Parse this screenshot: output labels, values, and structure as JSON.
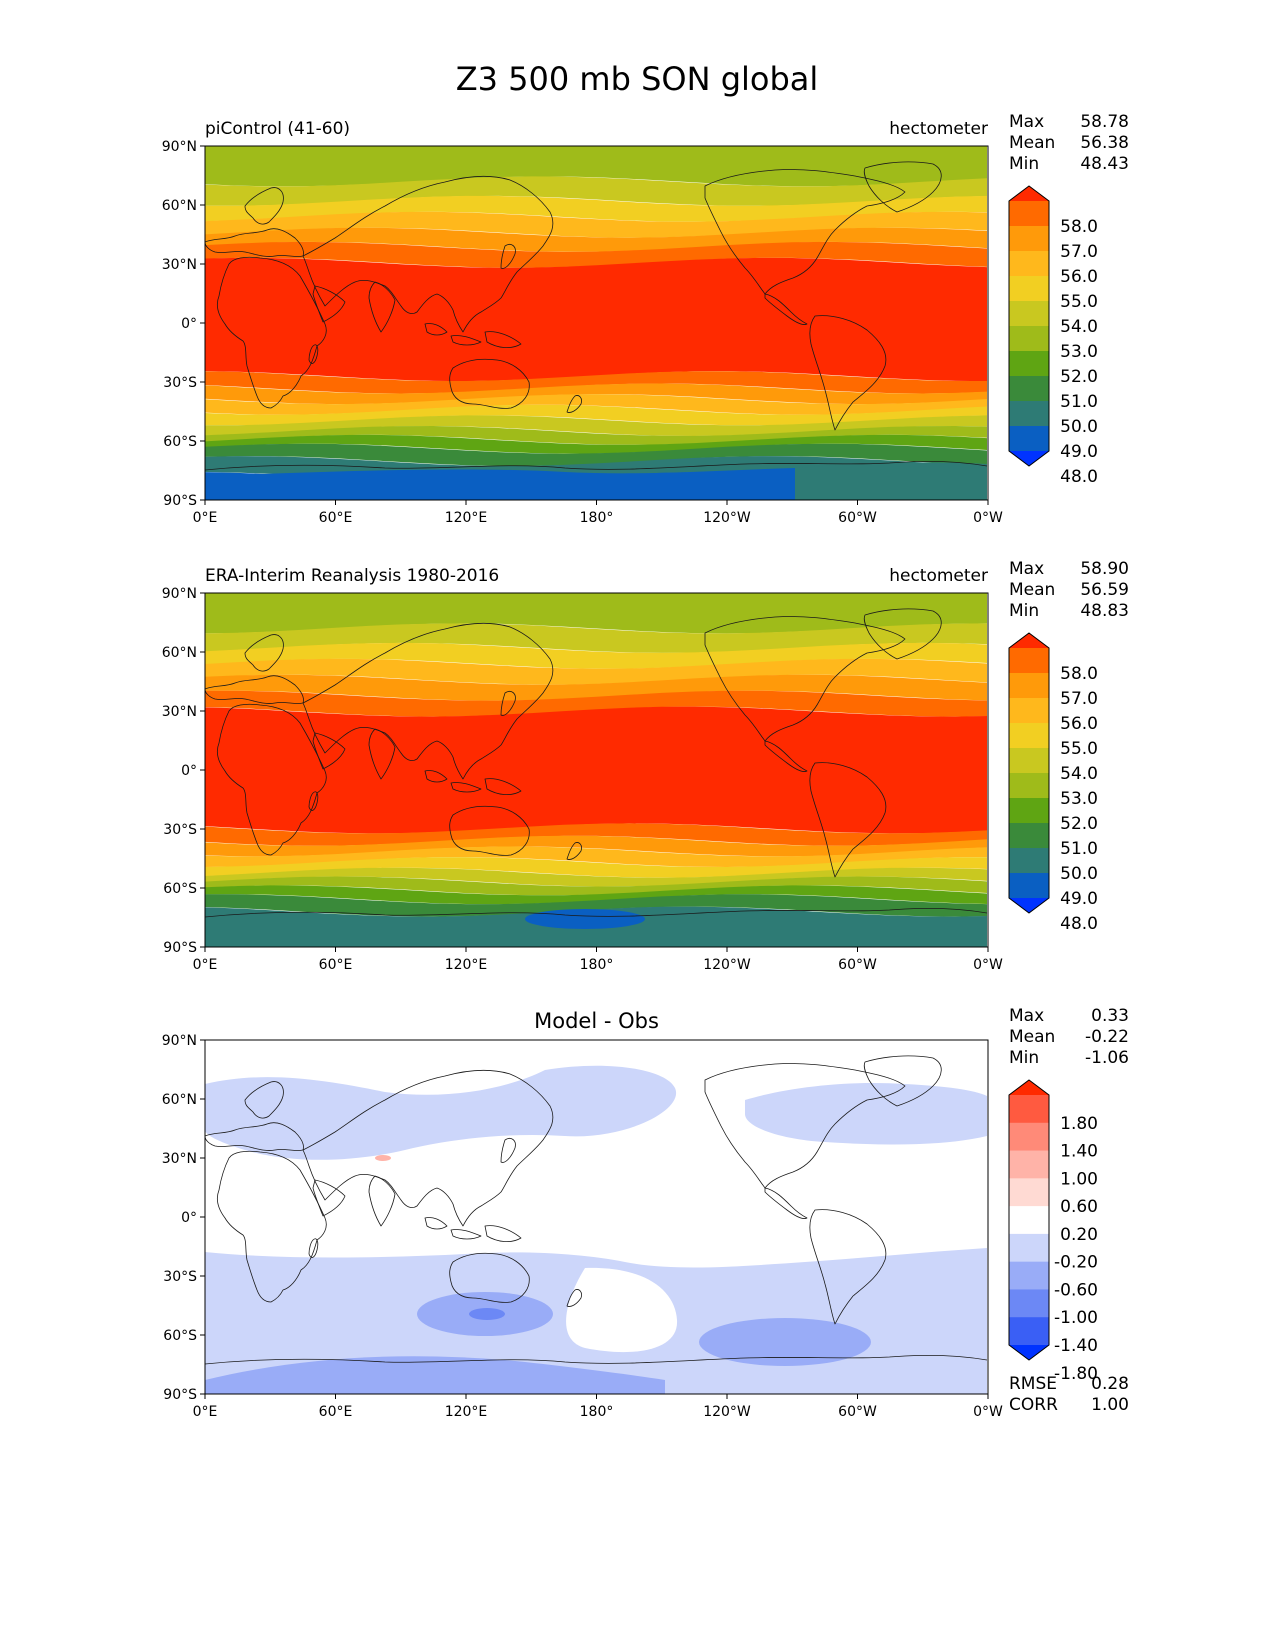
{
  "figure": {
    "title": "Z3 500 mb SON global"
  },
  "axes": {
    "lat_ticks": [
      "90°N",
      "60°N",
      "30°N",
      "0°",
      "30°S",
      "60°S",
      "90°S"
    ],
    "lon_ticks": [
      "0°E",
      "60°E",
      "120°E",
      "180°",
      "120°W",
      "60°W",
      "0°W"
    ]
  },
  "panels": [
    {
      "id": "model",
      "left_title": "piControl (41-60)",
      "center_title": "",
      "units": "hectometer",
      "stats": [
        {
          "label": "Max",
          "value": "58.78"
        },
        {
          "label": "Mean",
          "value": "56.38"
        },
        {
          "label": "Min",
          "value": "48.43"
        }
      ],
      "colorbar": {
        "labels": [
          "58.0",
          "57.0",
          "56.0",
          "55.0",
          "54.0",
          "53.0",
          "52.0",
          "51.0",
          "50.0",
          "49.0",
          "48.0"
        ],
        "colors": [
          "#FF2A00",
          "#FF6A00",
          "#FF9A0A",
          "#FFB81C",
          "#F2CF22",
          "#C9C820",
          "#9FBB1A",
          "#5FA513",
          "#3A8A3A",
          "#2E7B75",
          "#0A5FC2",
          "#0033FF"
        ]
      }
    },
    {
      "id": "obs",
      "left_title": "ERA-Interim Reanalysis 1980-2016",
      "center_title": "",
      "units": "hectometer",
      "stats": [
        {
          "label": "Max",
          "value": "58.90"
        },
        {
          "label": "Mean",
          "value": "56.59"
        },
        {
          "label": "Min",
          "value": "48.83"
        }
      ],
      "colorbar": {
        "labels": [
          "58.0",
          "57.0",
          "56.0",
          "55.0",
          "54.0",
          "53.0",
          "52.0",
          "51.0",
          "50.0",
          "49.0",
          "48.0"
        ],
        "colors": [
          "#FF2A00",
          "#FF6A00",
          "#FF9A0A",
          "#FFB81C",
          "#F2CF22",
          "#C9C820",
          "#9FBB1A",
          "#5FA513",
          "#3A8A3A",
          "#2E7B75",
          "#0A5FC2",
          "#0033FF"
        ]
      }
    },
    {
      "id": "diff",
      "left_title": "",
      "center_title": "Model - Obs",
      "units": "",
      "stats": [
        {
          "label": "Max",
          "value": "0.33"
        },
        {
          "label": "Mean",
          "value": "-0.22"
        },
        {
          "label": "Min",
          "value": "-1.06"
        }
      ],
      "colorbar": {
        "labels": [
          "1.80",
          "1.40",
          "1.00",
          "0.60",
          "0.20",
          "-0.20",
          "-0.60",
          "-1.00",
          "-1.40",
          "-1.80"
        ],
        "colors": [
          "#FF2A00",
          "#FF5A40",
          "#FF8A78",
          "#FFB3A8",
          "#FFDAD3",
          "#FFFFFF",
          "#CCD6FA",
          "#99ACF7",
          "#6C88F5",
          "#3A5FF5",
          "#0033FF"
        ]
      },
      "footer_stats": [
        {
          "label": "RMSE",
          "value": "0.28"
        },
        {
          "label": "CORR",
          "value": "1.00"
        }
      ]
    }
  ]
}
